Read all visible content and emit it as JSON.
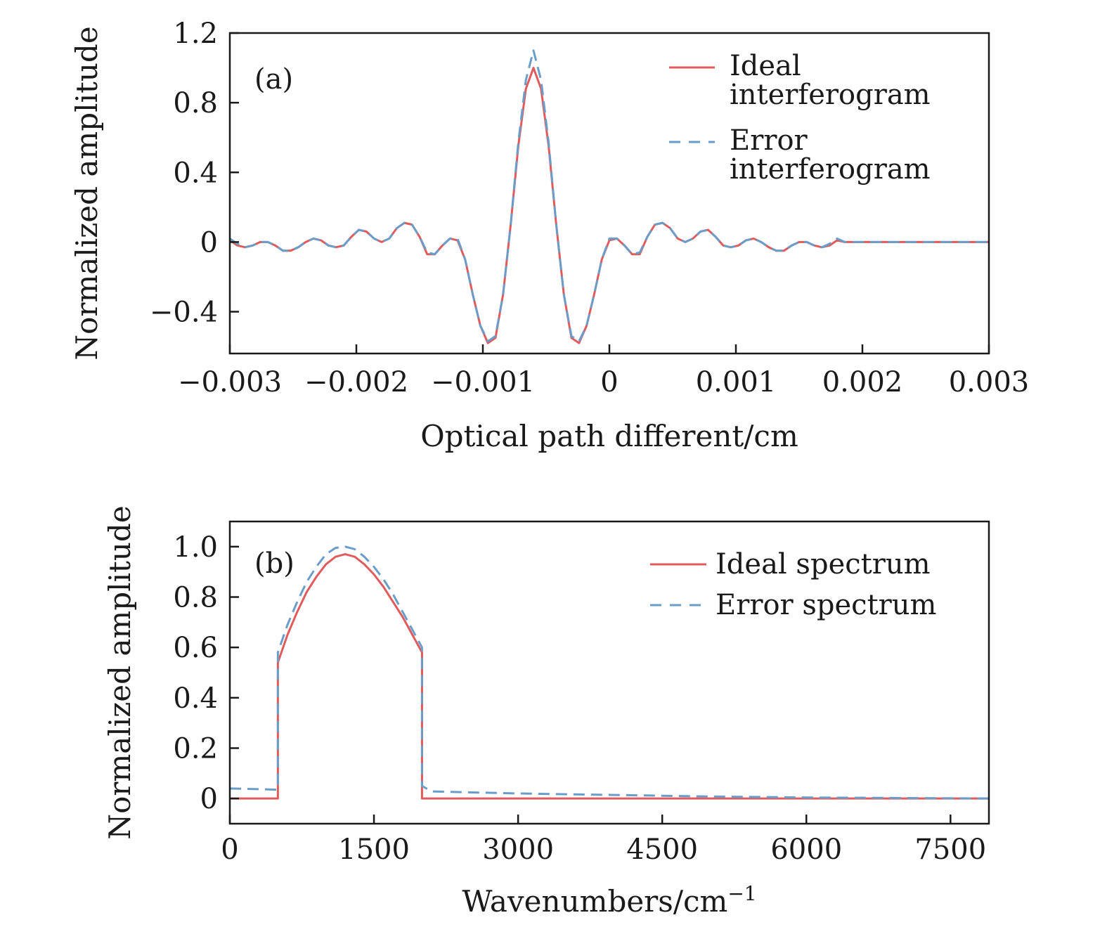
{
  "colors": {
    "ideal": "#e05c5c",
    "error": "#6a9ec9"
  },
  "chart_data": [
    {
      "type": "line",
      "panel_label": "(a)",
      "xlabel": "Optical path different/cm",
      "ylabel": "Normalized amplitude",
      "xlim": [
        -0.003,
        0.003
      ],
      "ylim": [
        -0.64,
        1.2
      ],
      "xticks": [
        -0.003,
        -0.002,
        -0.001,
        0,
        0.001,
        0.002,
        0.003
      ],
      "xtick_labels": [
        "−0.003",
        "−0.002",
        "−0.001",
        "0",
        "0.001",
        "0.002",
        "0.003"
      ],
      "yticks": [
        -0.4,
        0,
        0.4,
        0.8,
        1.2
      ],
      "ytick_labels": [
        "−0.4",
        "0",
        "0.4",
        "0.8",
        "1.2"
      ],
      "legend_position": "top-right",
      "grid": false,
      "series": [
        {
          "name": "Ideal interferogram",
          "style": "solid",
          "x": [
            -0.003,
            -0.00294,
            -0.00288,
            -0.00282,
            -0.00276,
            -0.0027,
            -0.00264,
            -0.00258,
            -0.00252,
            -0.00246,
            -0.0024,
            -0.00234,
            -0.00228,
            -0.00222,
            -0.00216,
            -0.0021,
            -0.00204,
            -0.00198,
            -0.00192,
            -0.00186,
            -0.0018,
            -0.00174,
            -0.00168,
            -0.00162,
            -0.00156,
            -0.0015,
            -0.00144,
            -0.00138,
            -0.00132,
            -0.00126,
            -0.0012,
            -0.00114,
            -0.00108,
            -0.00102,
            -0.00096,
            -0.0009,
            -0.00084,
            -0.00078,
            -0.00072,
            -0.00066,
            -0.0006,
            -0.00054,
            -0.00048,
            -0.00042,
            -0.00036,
            -0.0003,
            -0.00024,
            -0.00018,
            -0.00012,
            -6e-05,
            0,
            6e-05,
            0.00012,
            0.00018,
            0.00024,
            0.0003,
            0.00036,
            0.00042,
            0.00048,
            0.00054,
            0.0006,
            0.00066,
            0.00072,
            0.00078,
            0.00084,
            0.0009,
            0.00096,
            0.00102,
            0.00108,
            0.00114,
            0.0012,
            0.00126,
            0.00132,
            0.00138,
            0.00144,
            0.0015,
            0.00156,
            0.00162,
            0.00168,
            0.00174,
            0.0018,
            0.00186,
            0.00192,
            0.00198,
            0.00204,
            0.0021,
            0.00216,
            0.00222,
            0.00228,
            0.00234,
            0.0024,
            0.00246,
            0.00252,
            0.00258,
            0.00264,
            0.0027,
            0.00276,
            0.00282,
            0.00288,
            0.00294,
            0.003
          ],
          "y": [
            0.01,
            -0.02,
            -0.03,
            -0.02,
            0.0,
            0.0,
            -0.02,
            -0.05,
            -0.05,
            -0.03,
            0.0,
            0.02,
            0.01,
            -0.02,
            -0.03,
            -0.02,
            0.03,
            0.07,
            0.06,
            0.02,
            0.0,
            0.02,
            0.08,
            0.11,
            0.1,
            0.03,
            -0.07,
            -0.07,
            -0.02,
            0.02,
            0.01,
            -0.1,
            -0.3,
            -0.48,
            -0.58,
            -0.55,
            -0.3,
            0.1,
            0.55,
            0.88,
            1.0,
            0.88,
            0.55,
            0.1,
            -0.3,
            -0.55,
            -0.58,
            -0.48,
            -0.3,
            -0.1,
            0.01,
            0.02,
            -0.02,
            -0.07,
            -0.07,
            0.03,
            0.1,
            0.11,
            0.08,
            0.02,
            0.0,
            0.02,
            0.06,
            0.07,
            0.03,
            -0.02,
            -0.03,
            -0.02,
            0.01,
            0.02,
            0.0,
            -0.03,
            -0.05,
            -0.05,
            -0.02,
            0.0,
            0.0,
            -0.02,
            -0.03,
            -0.02,
            0.01,
            0.0,
            0.0,
            0.0,
            0.0,
            0.0,
            0.0,
            0.0,
            0.0,
            0.0,
            0.0,
            0.0,
            0.0,
            0.0,
            0.0,
            0.0,
            0.0,
            0.0,
            0.0,
            0.0,
            0.0
          ]
        },
        {
          "name": "Error interferogram",
          "style": "dashed",
          "x": [
            -0.003,
            -0.00294,
            -0.00288,
            -0.00282,
            -0.00276,
            -0.0027,
            -0.00264,
            -0.00258,
            -0.00252,
            -0.00246,
            -0.0024,
            -0.00234,
            -0.00228,
            -0.00222,
            -0.00216,
            -0.0021,
            -0.00204,
            -0.00198,
            -0.00192,
            -0.00186,
            -0.0018,
            -0.00174,
            -0.00168,
            -0.00162,
            -0.00156,
            -0.0015,
            -0.00144,
            -0.00138,
            -0.00132,
            -0.00126,
            -0.0012,
            -0.00114,
            -0.00108,
            -0.00102,
            -0.00096,
            -0.0009,
            -0.00084,
            -0.00078,
            -0.00072,
            -0.00066,
            -0.0006,
            -0.00054,
            -0.00048,
            -0.00042,
            -0.00036,
            -0.0003,
            -0.00024,
            -0.00018,
            -0.00012,
            -6e-05,
            0,
            6e-05,
            0.00012,
            0.00018,
            0.00024,
            0.0003,
            0.00036,
            0.00042,
            0.00048,
            0.00054,
            0.0006,
            0.00066,
            0.00072,
            0.00078,
            0.00084,
            0.0009,
            0.00096,
            0.00102,
            0.00108,
            0.00114,
            0.0012,
            0.00126,
            0.00132,
            0.00138,
            0.00144,
            0.0015,
            0.00156,
            0.00162,
            0.00168,
            0.00174,
            0.0018,
            0.00186,
            0.00192,
            0.00198,
            0.00204,
            0.0021,
            0.00216,
            0.00222,
            0.00228,
            0.00234,
            0.0024,
            0.00246,
            0.00252,
            0.00258,
            0.00264,
            0.0027,
            0.00276,
            0.00282,
            0.00288,
            0.00294,
            0.003
          ],
          "y": [
            0.02,
            -0.01,
            -0.03,
            -0.02,
            0.0,
            0.0,
            -0.02,
            -0.05,
            -0.05,
            -0.03,
            0.0,
            0.02,
            0.01,
            -0.02,
            -0.03,
            -0.02,
            0.03,
            0.07,
            0.06,
            0.02,
            0.0,
            0.02,
            0.08,
            0.11,
            0.1,
            0.03,
            -0.06,
            -0.07,
            -0.02,
            0.02,
            0.02,
            -0.1,
            -0.3,
            -0.48,
            -0.57,
            -0.54,
            -0.3,
            0.1,
            0.57,
            0.93,
            1.1,
            0.93,
            0.57,
            0.1,
            -0.3,
            -0.54,
            -0.57,
            -0.48,
            -0.3,
            -0.1,
            0.02,
            0.02,
            -0.02,
            -0.07,
            -0.06,
            0.03,
            0.1,
            0.11,
            0.08,
            0.02,
            0.0,
            0.02,
            0.06,
            0.07,
            0.03,
            -0.02,
            -0.03,
            -0.02,
            0.01,
            0.02,
            0.0,
            -0.03,
            -0.05,
            -0.05,
            -0.02,
            0.0,
            0.0,
            -0.02,
            -0.03,
            -0.01,
            0.02,
            0.0,
            0.0,
            0.0,
            0.0,
            0.0,
            0.0,
            0.0,
            0.0,
            0.0,
            0.0,
            0.0,
            0.0,
            0.0,
            0.0,
            0.0,
            0.0,
            0.0,
            0.0,
            0.0,
            0.0
          ]
        }
      ]
    },
    {
      "type": "line",
      "panel_label": "(b)",
      "xlabel": "Wavenumbers/cm",
      "xlabel_superscript": "−1",
      "ylabel": "Normalized amplitude",
      "xlim": [
        0,
        7900
      ],
      "ylim": [
        -0.1,
        1.1
      ],
      "xticks": [
        0,
        1500,
        3000,
        4500,
        6000,
        7500
      ],
      "xtick_labels": [
        "0",
        "1500",
        "3000",
        "4500",
        "6000",
        "7500"
      ],
      "yticks": [
        0,
        0.2,
        0.4,
        0.6,
        0.8,
        1.0
      ],
      "ytick_labels": [
        "0",
        "0.2",
        "0.4",
        "0.6",
        "0.8",
        "1.0"
      ],
      "legend_position": "top-right",
      "grid": false,
      "series": [
        {
          "name": "Ideal spectrum",
          "style": "solid",
          "x": [
            0,
            500,
            500,
            600,
            700,
            800,
            900,
            1000,
            1100,
            1200,
            1300,
            1400,
            1500,
            1600,
            1700,
            1800,
            1900,
            2000,
            2000,
            7900
          ],
          "y": [
            0,
            0,
            0.54,
            0.65,
            0.74,
            0.82,
            0.88,
            0.93,
            0.96,
            0.97,
            0.96,
            0.93,
            0.89,
            0.84,
            0.78,
            0.72,
            0.65,
            0.58,
            0,
            0
          ]
        },
        {
          "name": "Error spectrum",
          "style": "dashed",
          "x": [
            0,
            500,
            500,
            600,
            700,
            800,
            900,
            1000,
            1100,
            1200,
            1300,
            1400,
            1500,
            1600,
            1700,
            1800,
            1900,
            2000,
            2000,
            2100,
            3000,
            4000,
            5000,
            6000,
            7000,
            7900
          ],
          "y": [
            0.04,
            0.035,
            0.58,
            0.69,
            0.78,
            0.86,
            0.92,
            0.97,
            0.995,
            1.0,
            0.99,
            0.96,
            0.92,
            0.87,
            0.81,
            0.74,
            0.67,
            0.6,
            0.05,
            0.028,
            0.02,
            0.014,
            0.008,
            0.004,
            0.002,
            0.0
          ]
        }
      ]
    }
  ]
}
